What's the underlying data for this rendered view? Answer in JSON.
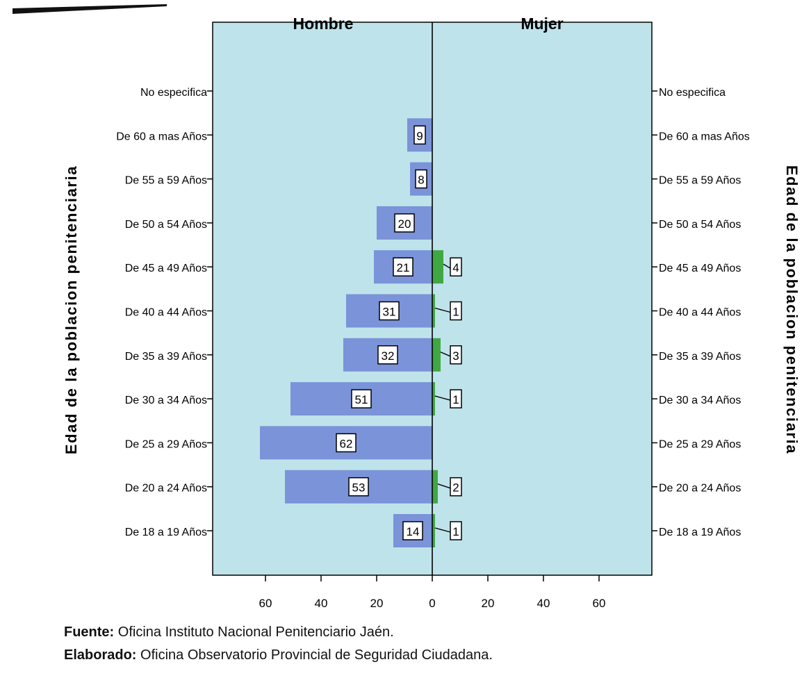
{
  "chart_data": {
    "type": "bar",
    "orientation": "horizontal",
    "layout": "population-pyramid",
    "panels": [
      "Hombre",
      "Mujer"
    ],
    "categories": [
      "No especifica",
      "De 60 a mas Años",
      "De 55 a 59 Años",
      "De 50 a 54 Años",
      "De 45 a 49 Años",
      "De 40 a 44 Años",
      "De 35 a 39 Años",
      "De 30 a 34 Años",
      "De 25 a 29 Años",
      "De 20 a 24 Años",
      "De 18 a 19 Años"
    ],
    "series": [
      {
        "name": "Hombre",
        "values": [
          0,
          9,
          8,
          20,
          21,
          31,
          32,
          51,
          62,
          53,
          14
        ],
        "color": "#7b93d8"
      },
      {
        "name": "Mujer",
        "values": [
          0,
          0,
          0,
          0,
          4,
          1,
          3,
          1,
          0,
          2,
          1
        ],
        "color": "#3fa842"
      }
    ],
    "ylabel_left": "Edad de la poblacion penitenciaria",
    "ylabel_right": "Edad de la poblacion penitenciaria",
    "xticks": [
      "60",
      "40",
      "20",
      "0",
      "20",
      "40",
      "60"
    ],
    "xlim": [
      0,
      77
    ],
    "grid": false,
    "plot_background": "#bfe3ea"
  },
  "footer": {
    "source_label": "Fuente:",
    "source_text": " Oficina Instituto Nacional Penitenciario Jaén.",
    "credit_label": "Elaborado:",
    "credit_text": " Oficina Observatorio Provincial de Seguridad Ciudadana."
  }
}
